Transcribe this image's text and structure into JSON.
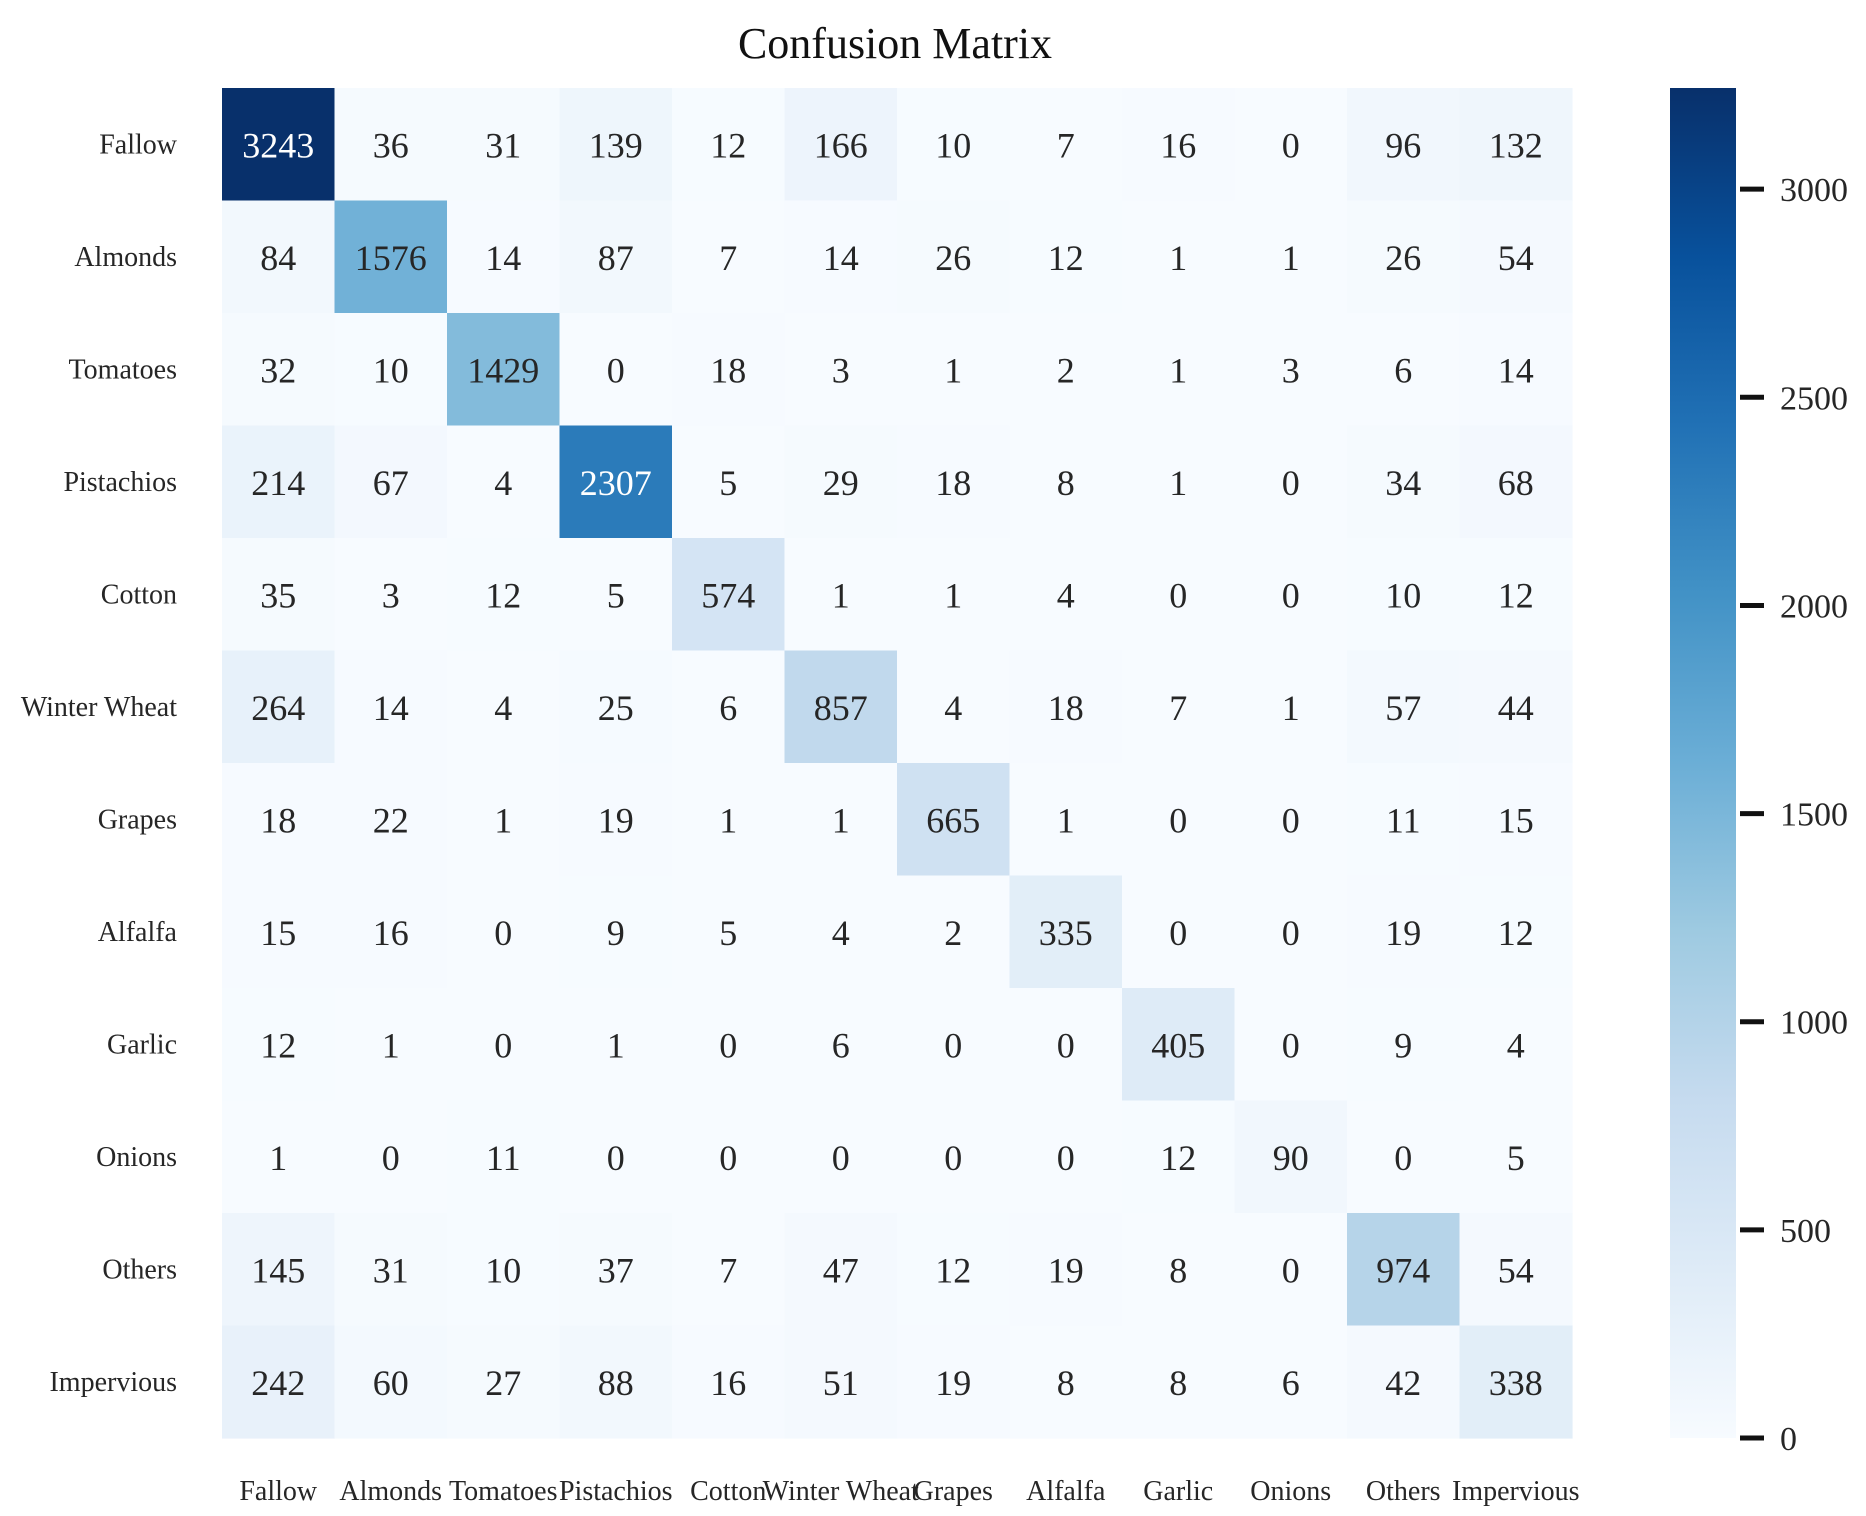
{
  "chart_data": {
    "type": "heatmap",
    "title": "Confusion Matrix",
    "row_labels": [
      "Fallow",
      "Almonds",
      "Tomatoes",
      "Pistachios",
      "Cotton",
      "Winter Wheat",
      "Grapes",
      "Alfalfa",
      "Garlic",
      "Onions",
      "Others",
      "Impervious"
    ],
    "col_labels": [
      "Fallow",
      "Almonds",
      "Tomatoes",
      "Pistachios",
      "Cotton",
      "Winter Wheat",
      "Grapes",
      "Alfalfa",
      "Garlic",
      "Onions",
      "Others",
      "Impervious"
    ],
    "values": [
      [
        3243,
        36,
        31,
        139,
        12,
        166,
        10,
        7,
        16,
        0,
        96,
        132
      ],
      [
        84,
        1576,
        14,
        87,
        7,
        14,
        26,
        12,
        1,
        1,
        26,
        54
      ],
      [
        32,
        10,
        1429,
        0,
        18,
        3,
        1,
        2,
        1,
        3,
        6,
        14
      ],
      [
        214,
        67,
        4,
        2307,
        5,
        29,
        18,
        8,
        1,
        0,
        34,
        68
      ],
      [
        35,
        3,
        12,
        5,
        574,
        1,
        1,
        4,
        0,
        0,
        10,
        12
      ],
      [
        264,
        14,
        4,
        25,
        6,
        857,
        4,
        18,
        7,
        1,
        57,
        44
      ],
      [
        18,
        22,
        1,
        19,
        1,
        1,
        665,
        1,
        0,
        0,
        11,
        15
      ],
      [
        15,
        16,
        0,
        9,
        5,
        4,
        2,
        335,
        0,
        0,
        19,
        12
      ],
      [
        12,
        1,
        0,
        1,
        0,
        6,
        0,
        0,
        405,
        0,
        9,
        4
      ],
      [
        1,
        0,
        11,
        0,
        0,
        0,
        0,
        0,
        12,
        90,
        0,
        5
      ],
      [
        145,
        31,
        10,
        37,
        7,
        47,
        12,
        19,
        8,
        0,
        974,
        54
      ],
      [
        242,
        60,
        27,
        88,
        16,
        51,
        19,
        8,
        8,
        6,
        42,
        338
      ]
    ],
    "colorbar": {
      "min": 0,
      "max": 3243,
      "ticks": [
        0,
        500,
        1000,
        1500,
        2000,
        2500,
        3000
      ],
      "colormap": "Blues"
    },
    "colormap_stops": [
      "#f7fbff",
      "#deebf7",
      "#c6dbef",
      "#9ecae1",
      "#6baed6",
      "#4292c6",
      "#2171b5",
      "#08519c",
      "#08306b"
    ]
  }
}
